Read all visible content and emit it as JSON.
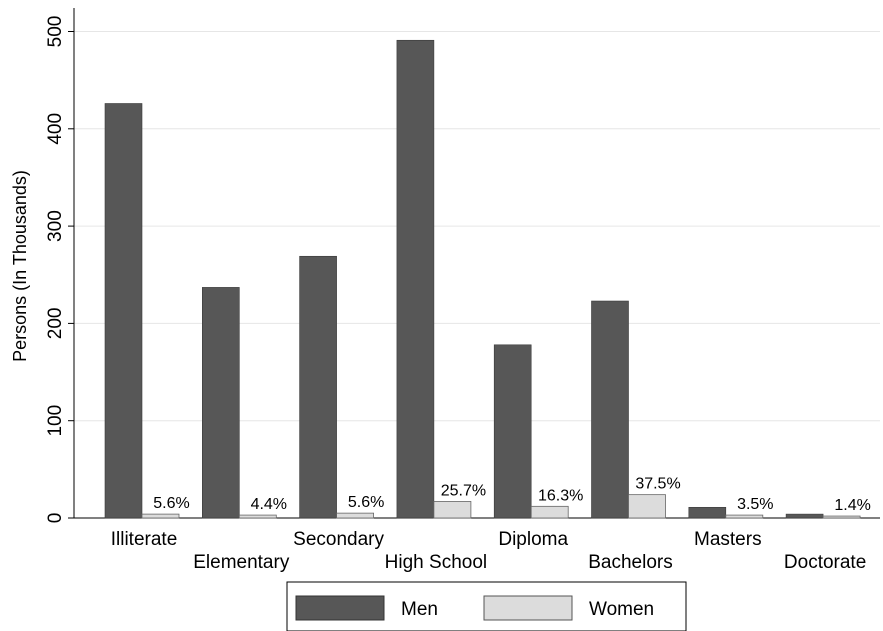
{
  "chart_data": {
    "type": "bar",
    "ylabel": "Persons (In Thousands)",
    "xlabel": "",
    "ylim": [
      0,
      520
    ],
    "yticks": [
      0,
      100,
      200,
      300,
      400,
      500
    ],
    "grid": true,
    "legend_position": "bottom",
    "categories": [
      "Illiterate",
      "Elementary",
      "Secondary",
      "High School",
      "Diploma",
      "Bachelors",
      "Masters",
      "Doctorate"
    ],
    "series": [
      {
        "name": "Men",
        "color": "#575757",
        "values": [
          426,
          237,
          269,
          491,
          178,
          223,
          11,
          4
        ]
      },
      {
        "name": "Women",
        "color": "#dcdcdc",
        "values": [
          4,
          3,
          5,
          17,
          12,
          24,
          3,
          2
        ],
        "labels": [
          "5.6%",
          "4.4%",
          "5.6%",
          "25.7%",
          "16.3%",
          "37.5%",
          "3.5%",
          "1.4%"
        ]
      }
    ]
  }
}
